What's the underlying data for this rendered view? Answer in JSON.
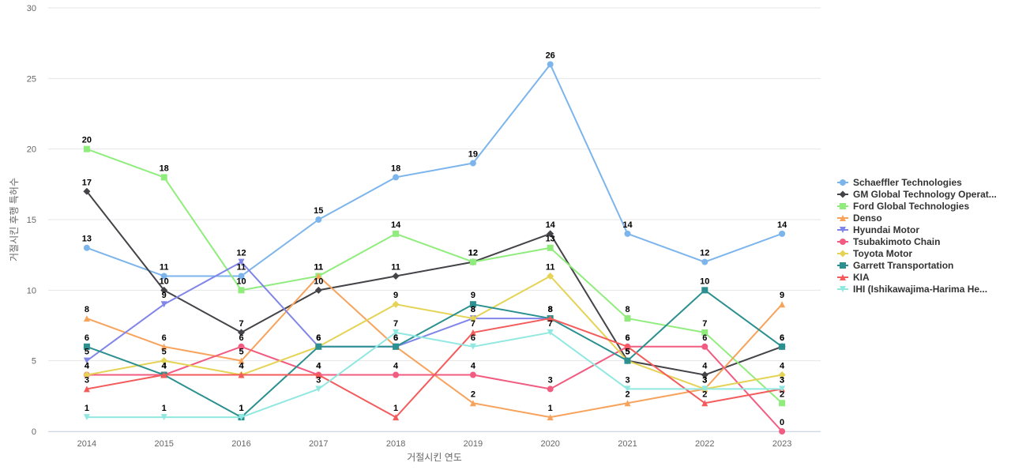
{
  "chart_data": {
    "type": "line",
    "title": "",
    "xlabel": "거절시킨 연도",
    "ylabel": "거절시킨 후행 특허수",
    "x": [
      "2014",
      "2015",
      "2016",
      "2017",
      "2018",
      "2019",
      "2020",
      "2021",
      "2022",
      "2023"
    ],
    "ylim": [
      0,
      30
    ],
    "yticks": [
      0,
      5,
      10,
      15,
      20,
      25,
      30
    ],
    "grid": true,
    "legend": "right",
    "series": [
      {
        "name": "Schaeffler Technologies",
        "color": "#7cb5ec",
        "marker": "circle",
        "values": [
          13,
          11,
          11,
          15,
          18,
          19,
          26,
          14,
          12,
          14
        ]
      },
      {
        "name": "GM Global Technology Operat...",
        "color": "#434348",
        "marker": "diamond",
        "values": [
          17,
          10,
          7,
          10,
          11,
          12,
          14,
          5,
          4,
          6
        ]
      },
      {
        "name": "Ford Global Technologies",
        "color": "#90ed7d",
        "marker": "square",
        "values": [
          20,
          18,
          10,
          11,
          14,
          12,
          13,
          8,
          7,
          2
        ]
      },
      {
        "name": "Denso",
        "color": "#f7a35c",
        "marker": "triangle",
        "values": [
          8,
          6,
          5,
          11,
          6,
          2,
          1,
          2,
          3,
          9
        ]
      },
      {
        "name": "Hyundai Motor",
        "color": "#8085e9",
        "marker": "triangle-down",
        "values": [
          5,
          9,
          12,
          6,
          6,
          8,
          8,
          null,
          null,
          null
        ]
      },
      {
        "name": "Tsubakimoto Chain",
        "color": "#f15c80",
        "marker": "circle",
        "values": [
          4,
          4,
          6,
          4,
          4,
          4,
          3,
          6,
          6,
          0
        ]
      },
      {
        "name": "Toyota Motor",
        "color": "#e4d354",
        "marker": "diamond",
        "values": [
          4,
          5,
          4,
          6,
          9,
          8,
          11,
          5,
          3,
          4
        ]
      },
      {
        "name": "Garrett Transportation",
        "color": "#2b908f",
        "marker": "square",
        "values": [
          6,
          4,
          1,
          6,
          6,
          9,
          8,
          5,
          10,
          6
        ]
      },
      {
        "name": "KIA",
        "color": "#f45b5b",
        "marker": "triangle",
        "values": [
          3,
          4,
          4,
          4,
          1,
          7,
          8,
          6,
          2,
          3
        ]
      },
      {
        "name": "IHI (Ishikawajima-Harima He...",
        "color": "#91e8e1",
        "marker": "triangle-down",
        "values": [
          1,
          1,
          1,
          3,
          7,
          6,
          7,
          3,
          3,
          3
        ]
      }
    ]
  }
}
